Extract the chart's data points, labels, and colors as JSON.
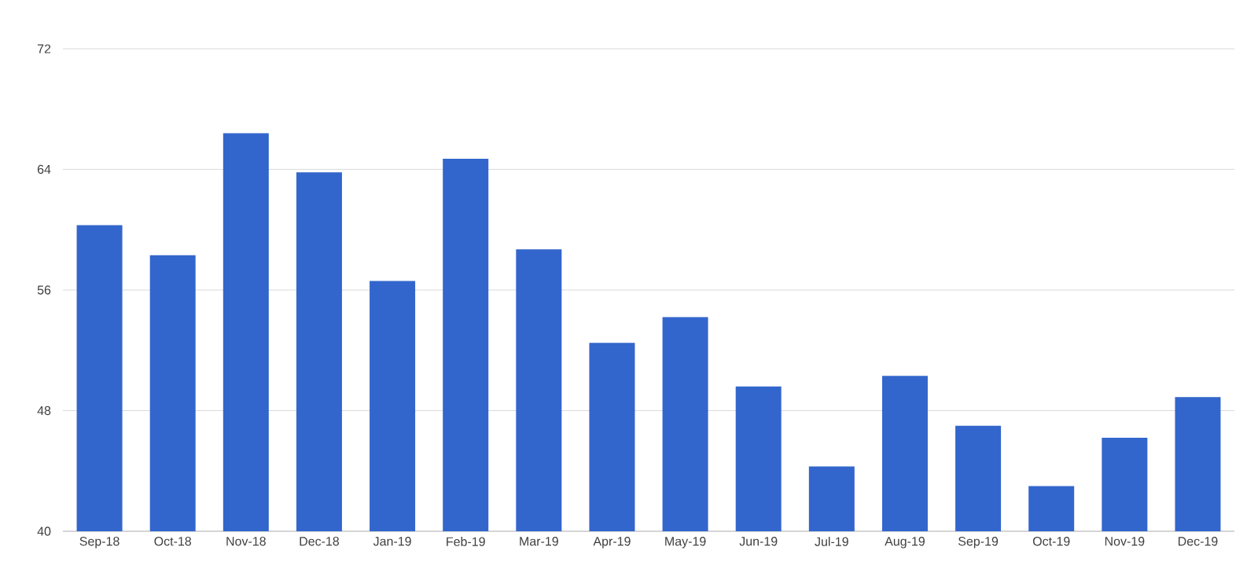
{
  "chart_data": {
    "type": "bar",
    "categories": [
      "Sep-18",
      "Oct-18",
      "Nov-18",
      "Dec-18",
      "Jan-19",
      "Feb-19",
      "Mar-19",
      "Apr-19",
      "May-19",
      "Jun-19",
      "Jul-19",
      "Aug-19",
      "Sep-19",
      "Oct-19",
      "Nov-19",
      "Dec-19"
    ],
    "values": [
      60.3,
      58.3,
      66.4,
      63.8,
      56.6,
      64.7,
      58.7,
      52.5,
      54.2,
      49.6,
      44.3,
      50.3,
      47.0,
      43.0,
      46.2,
      48.9
    ],
    "color": "#3366cc",
    "ylim": [
      40,
      72
    ],
    "yticks": [
      40,
      48,
      56,
      64,
      72
    ],
    "grid": "y"
  }
}
